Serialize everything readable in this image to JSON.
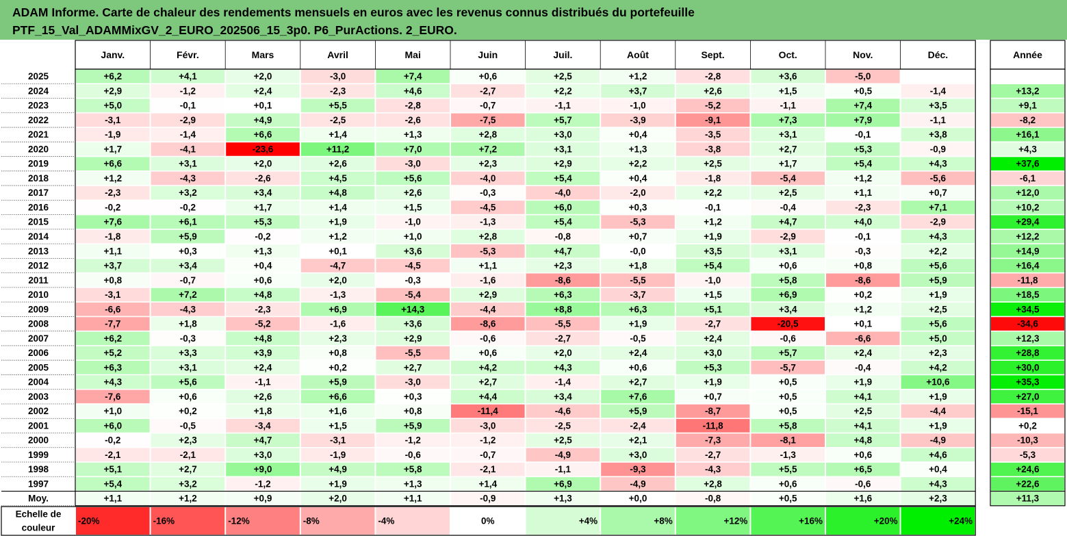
{
  "title": {
    "line1": "ADAM Informe. Carte de chaleur des rendements mensuels en euros avec les revenus connus distribués du portefeuille",
    "line2": "PTF_15_Val_ADAMMixGV_2_EURO_202506_15_3p0. P6_PurActions. 2_EURO."
  },
  "chart_data": {
    "type": "heatmap",
    "months": [
      "Janv.",
      "Févr.",
      "Mars",
      "Avril",
      "Mai",
      "Juin",
      "Juil.",
      "Août",
      "Sept.",
      "Oct.",
      "Nov.",
      "Déc."
    ],
    "annual_label": "Année",
    "rows": [
      {
        "year": "2025",
        "values": [
          6.2,
          4.1,
          2.0,
          -3.0,
          7.4,
          0.6,
          2.5,
          1.2,
          -2.8,
          3.6,
          -5.0,
          null
        ],
        "annual": null
      },
      {
        "year": "2024",
        "values": [
          2.9,
          -1.2,
          2.4,
          -2.3,
          4.6,
          -2.7,
          2.2,
          3.7,
          2.6,
          1.5,
          0.5,
          -1.4
        ],
        "annual": 13.2
      },
      {
        "year": "2023",
        "values": [
          5.0,
          -0.1,
          0.1,
          5.5,
          -2.8,
          -0.7,
          -1.1,
          -1.0,
          -5.2,
          -1.1,
          7.4,
          3.5
        ],
        "annual": 9.1
      },
      {
        "year": "2022",
        "values": [
          -3.1,
          -2.9,
          4.9,
          -2.5,
          -2.6,
          -7.5,
          5.7,
          -3.9,
          -9.1,
          7.3,
          7.9,
          -1.1
        ],
        "annual": -8.2
      },
      {
        "year": "2021",
        "values": [
          -1.9,
          -1.4,
          6.6,
          1.4,
          1.3,
          2.8,
          3.0,
          0.4,
          -3.5,
          3.1,
          -0.1,
          3.8
        ],
        "annual": 16.1
      },
      {
        "year": "2020",
        "values": [
          1.7,
          -4.1,
          -23.6,
          11.2,
          7.0,
          7.2,
          3.1,
          1.3,
          -3.8,
          2.7,
          5.3,
          -0.9
        ],
        "annual": 4.3
      },
      {
        "year": "2019",
        "values": [
          6.6,
          3.1,
          2.0,
          2.6,
          -3.0,
          2.3,
          2.9,
          2.2,
          2.5,
          1.7,
          5.4,
          4.3
        ],
        "annual": 37.6
      },
      {
        "year": "2018",
        "values": [
          1.2,
          -4.3,
          -2.6,
          4.5,
          5.6,
          -4.0,
          5.4,
          0.4,
          -1.8,
          -5.4,
          1.2,
          -5.6
        ],
        "annual": -6.1
      },
      {
        "year": "2017",
        "values": [
          -2.3,
          3.2,
          3.4,
          4.8,
          2.6,
          -0.3,
          -4.0,
          -2.0,
          2.2,
          2.5,
          1.1,
          0.7
        ],
        "annual": 12.0
      },
      {
        "year": "2016",
        "values": [
          -0.2,
          -0.2,
          1.7,
          1.4,
          1.5,
          -4.5,
          6.0,
          0.3,
          -0.1,
          -0.4,
          -2.3,
          7.1
        ],
        "annual": 10.2
      },
      {
        "year": "2015",
        "values": [
          7.6,
          6.1,
          5.3,
          1.9,
          -1.0,
          -1.3,
          5.4,
          -5.3,
          1.2,
          4.7,
          4.0,
          -2.9
        ],
        "annual": 29.4
      },
      {
        "year": "2014",
        "values": [
          -1.8,
          5.9,
          -0.2,
          1.2,
          1.0,
          2.8,
          -0.8,
          0.7,
          1.9,
          -2.9,
          -0.1,
          4.3
        ],
        "annual": 12.2
      },
      {
        "year": "2013",
        "values": [
          1.1,
          0.3,
          1.3,
          0.1,
          3.6,
          -5.3,
          4.7,
          -0.0,
          3.5,
          3.1,
          -0.3,
          2.2
        ],
        "annual": 14.9
      },
      {
        "year": "2012",
        "values": [
          3.7,
          3.4,
          0.4,
          -4.7,
          -4.5,
          1.1,
          2.3,
          1.8,
          5.4,
          0.6,
          0.8,
          5.6
        ],
        "annual": 16.4
      },
      {
        "year": "2011",
        "values": [
          0.8,
          -0.7,
          0.6,
          2.0,
          -0.3,
          -1.6,
          -8.6,
          -5.5,
          -1.0,
          5.8,
          -8.6,
          5.9
        ],
        "annual": -11.8
      },
      {
        "year": "2010",
        "values": [
          -3.1,
          7.2,
          4.8,
          -1.3,
          -5.4,
          2.9,
          6.3,
          -3.7,
          1.5,
          6.9,
          0.2,
          1.9
        ],
        "annual": 18.5
      },
      {
        "year": "2009",
        "values": [
          -6.6,
          -4.3,
          -2.3,
          6.9,
          14.3,
          -4.4,
          8.8,
          6.3,
          5.1,
          3.4,
          1.2,
          2.5
        ],
        "annual": 34.5
      },
      {
        "year": "2008",
        "values": [
          -7.7,
          1.8,
          -5.2,
          -1.6,
          3.6,
          -8.6,
          -5.5,
          1.9,
          -2.7,
          -20.5,
          0.1,
          5.6
        ],
        "annual": -34.6
      },
      {
        "year": "2007",
        "values": [
          6.2,
          -0.3,
          4.8,
          2.3,
          2.9,
          -0.6,
          -2.7,
          -0.5,
          2.4,
          -0.6,
          -6.6,
          5.0
        ],
        "annual": 12.3
      },
      {
        "year": "2006",
        "values": [
          5.2,
          3.3,
          3.9,
          0.8,
          -5.5,
          0.6,
          2.0,
          2.4,
          3.0,
          5.7,
          2.4,
          2.3
        ],
        "annual": 28.8
      },
      {
        "year": "2005",
        "values": [
          6.3,
          3.1,
          2.4,
          0.2,
          2.7,
          4.2,
          4.3,
          0.6,
          5.3,
          -5.7,
          -0.4,
          4.2
        ],
        "annual": 30.0
      },
      {
        "year": "2004",
        "values": [
          4.3,
          5.6,
          -1.1,
          5.9,
          -3.0,
          2.7,
          -1.4,
          2.7,
          1.9,
          0.5,
          1.9,
          10.6
        ],
        "annual": 35.3
      },
      {
        "year": "2003",
        "values": [
          -7.6,
          0.6,
          2.6,
          6.6,
          0.3,
          4.4,
          3.4,
          7.6,
          0.7,
          0.5,
          4.1,
          1.9
        ],
        "annual": 27.0
      },
      {
        "year": "2002",
        "values": [
          1.0,
          0.2,
          1.8,
          1.6,
          0.8,
          -11.4,
          -4.6,
          5.9,
          -8.7,
          0.5,
          2.5,
          -4.4
        ],
        "annual": -15.1
      },
      {
        "year": "2001",
        "values": [
          6.0,
          -0.5,
          -3.4,
          1.5,
          5.9,
          -3.0,
          -2.5,
          -2.4,
          -11.8,
          5.8,
          4.1,
          1.9
        ],
        "annual": 0.2
      },
      {
        "year": "2000",
        "values": [
          -0.2,
          2.3,
          4.7,
          -3.1,
          -1.2,
          -1.2,
          2.5,
          2.1,
          -7.3,
          -8.1,
          4.8,
          -4.9
        ],
        "annual": -10.3
      },
      {
        "year": "1999",
        "values": [
          -2.1,
          -2.1,
          3.0,
          -1.9,
          -0.6,
          -0.7,
          -4.9,
          3.0,
          -2.7,
          -1.3,
          0.6,
          4.6
        ],
        "annual": -5.3
      },
      {
        "year": "1998",
        "values": [
          5.1,
          2.7,
          9.0,
          4.9,
          5.8,
          -2.1,
          -1.1,
          -9.3,
          -4.3,
          5.5,
          6.5,
          0.4
        ],
        "annual": 24.6
      },
      {
        "year": "1997",
        "values": [
          5.4,
          3.2,
          -1.2,
          1.9,
          1.3,
          1.4,
          6.9,
          -4.9,
          2.8,
          0.6,
          -0.6,
          4.3
        ],
        "annual": 22.6
      }
    ],
    "average": {
      "label": "Moy.",
      "values": [
        1.1,
        1.2,
        0.9,
        2.0,
        1.1,
        -0.9,
        1.3,
        0.0,
        -0.8,
        0.5,
        1.6,
        2.3
      ],
      "annual": 11.3
    },
    "color_scale": {
      "label_line1": "Echelle de",
      "label_line2": "couleur",
      "stops": [
        "-20%",
        "-16%",
        "-12%",
        "-8%",
        "-4%",
        "0%",
        "+4%",
        "+8%",
        "+12%",
        "+16%",
        "+20%",
        "+24%"
      ],
      "stop_values": [
        -20,
        -16,
        -12,
        -8,
        -4,
        0,
        4,
        8,
        12,
        16,
        20,
        24
      ],
      "negative_color": "#ff0000",
      "positive_color": "#00ee00",
      "neutral_color": "#ffffff",
      "header_fill": "#7ec87e"
    }
  }
}
